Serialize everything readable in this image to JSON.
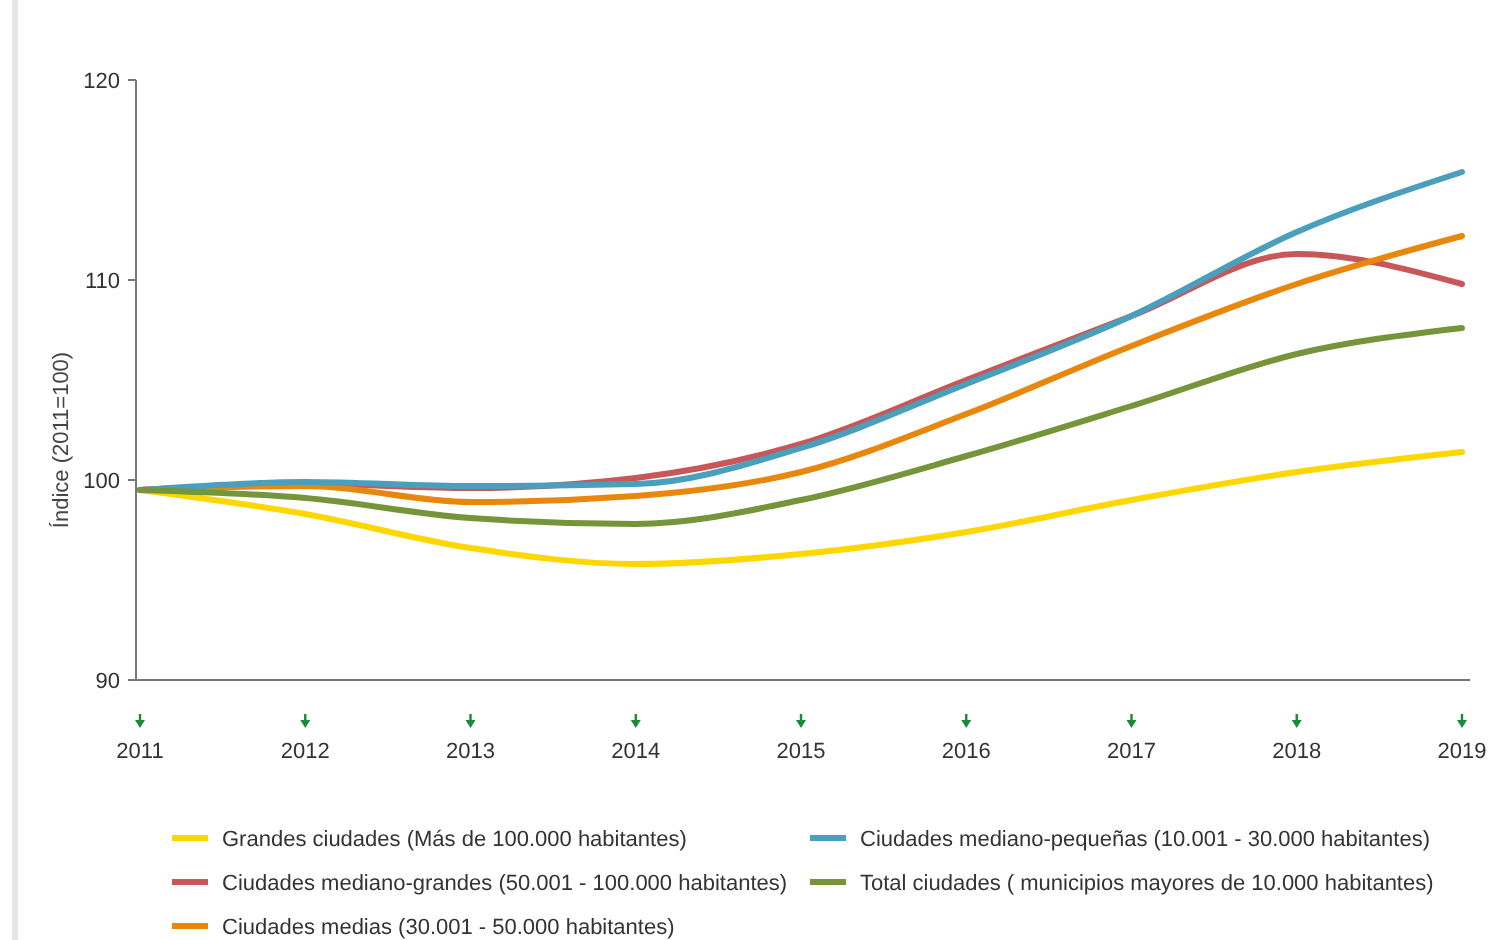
{
  "chart_data": {
    "type": "line",
    "ylabel": "Índice (2011=100)",
    "categories": [
      "2011",
      "2012",
      "2013",
      "2014",
      "2015",
      "2016",
      "2017",
      "2018",
      "2019"
    ],
    "ylim": [
      90,
      120
    ],
    "yticks": [
      90,
      100,
      110,
      120
    ],
    "grid": false,
    "legend": "bottom",
    "marker": "none",
    "line_style": "solid",
    "series": [
      {
        "name": "Grandes ciudades (Más de 100.000 habitantes)",
        "color": "#ffd700",
        "values": [
          99.5,
          98.3,
          96.6,
          95.8,
          96.3,
          97.4,
          99.0,
          100.4,
          101.4
        ]
      },
      {
        "name": "Ciudades mediano-grandes (50.001 - 100.000 habitantes)",
        "color": "#c8575a",
        "values": [
          99.5,
          99.8,
          99.6,
          100.1,
          101.8,
          105.0,
          108.2,
          111.3,
          109.8
        ]
      },
      {
        "name": "Ciudades medias (30.001 - 50.000 habitantes)",
        "color": "#e8870b",
        "values": [
          99.5,
          99.7,
          98.9,
          99.2,
          100.4,
          103.3,
          106.7,
          109.8,
          112.2
        ]
      },
      {
        "name": "Ciudades mediano-pequeñas (10.001 - 30.000 habitantes)",
        "color": "#4a9fbc",
        "values": [
          99.5,
          99.9,
          99.7,
          99.8,
          101.6,
          104.8,
          108.2,
          112.4,
          115.4
        ]
      },
      {
        "name": "Total ciudades ( municipios mayores de 10.000 habitantes)",
        "color": "#76943a",
        "values": [
          99.5,
          99.1,
          98.1,
          97.8,
          99.0,
          101.2,
          103.7,
          106.3,
          107.6
        ]
      }
    ]
  }
}
